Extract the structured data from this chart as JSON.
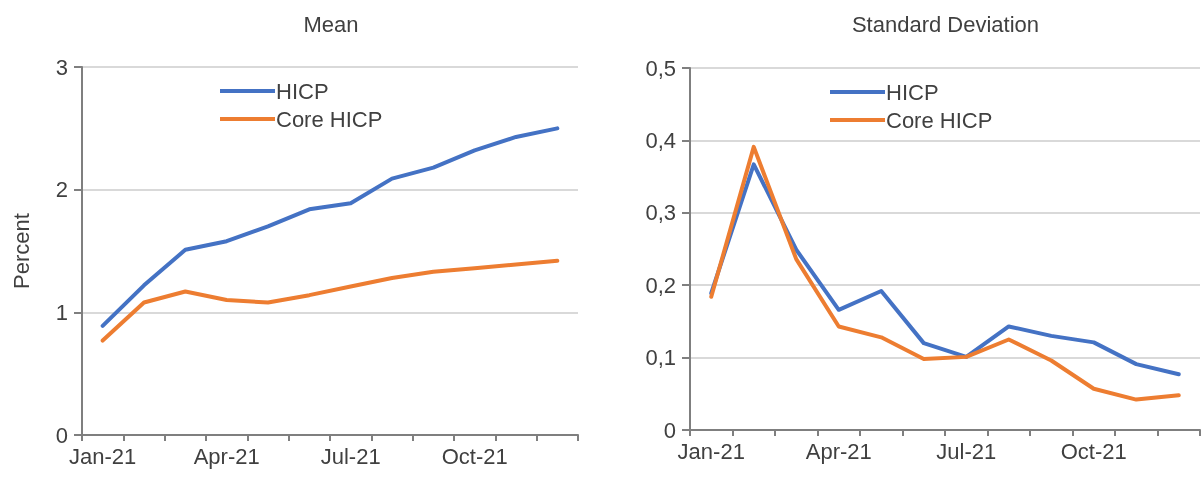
{
  "chart_data": [
    {
      "type": "line",
      "title": "Mean",
      "ylabel": "Percent",
      "categories": [
        "Jan-21",
        null,
        null,
        "Apr-21",
        null,
        null,
        "Jul-21",
        null,
        null,
        "Oct-21",
        null,
        null
      ],
      "ylim": [
        0,
        3
      ],
      "yticks": [
        0,
        1,
        2,
        3
      ],
      "grid": "y",
      "legend": "top",
      "marker": "none",
      "line_style": "solid",
      "series": [
        {
          "name": "HICP",
          "color": "#4472c4",
          "values": [
            0.89,
            1.22,
            1.51,
            1.58,
            1.7,
            1.84,
            1.89,
            2.09,
            2.18,
            2.32,
            2.43,
            2.5
          ]
        },
        {
          "name": "Core HICP",
          "color": "#ed7d31",
          "values": [
            0.77,
            1.08,
            1.17,
            1.1,
            1.08,
            1.14,
            1.21,
            1.28,
            1.33,
            1.36,
            1.39,
            1.42
          ]
        }
      ]
    },
    {
      "type": "line",
      "title": "Standard Deviation",
      "categories": [
        "Jan-21",
        null,
        null,
        "Apr-21",
        null,
        null,
        "Jul-21",
        null,
        null,
        "Oct-21",
        null,
        null
      ],
      "ylim": [
        0,
        0.5
      ],
      "yticks": [
        0,
        {
          "value": 0.1,
          "label": "0,1"
        },
        {
          "value": 0.2,
          "label": "0,2"
        },
        {
          "value": 0.3,
          "label": "0,3"
        },
        {
          "value": 0.4,
          "label": "0,4"
        },
        {
          "value": 0.5,
          "label": "0,5"
        }
      ],
      "grid": "y",
      "legend": "top",
      "marker": "none",
      "line_style": "solid",
      "series": [
        {
          "name": "HICP",
          "color": "#4472c4",
          "values": [
            0.189,
            0.367,
            0.249,
            0.166,
            0.192,
            0.12,
            0.101,
            0.143,
            0.13,
            0.121,
            0.091,
            0.077
          ]
        },
        {
          "name": "Core HICP",
          "color": "#ed7d31",
          "values": [
            0.184,
            0.391,
            0.236,
            0.143,
            0.128,
            0.098,
            0.101,
            0.125,
            0.096,
            0.057,
            0.042,
            0.048
          ]
        }
      ]
    }
  ]
}
